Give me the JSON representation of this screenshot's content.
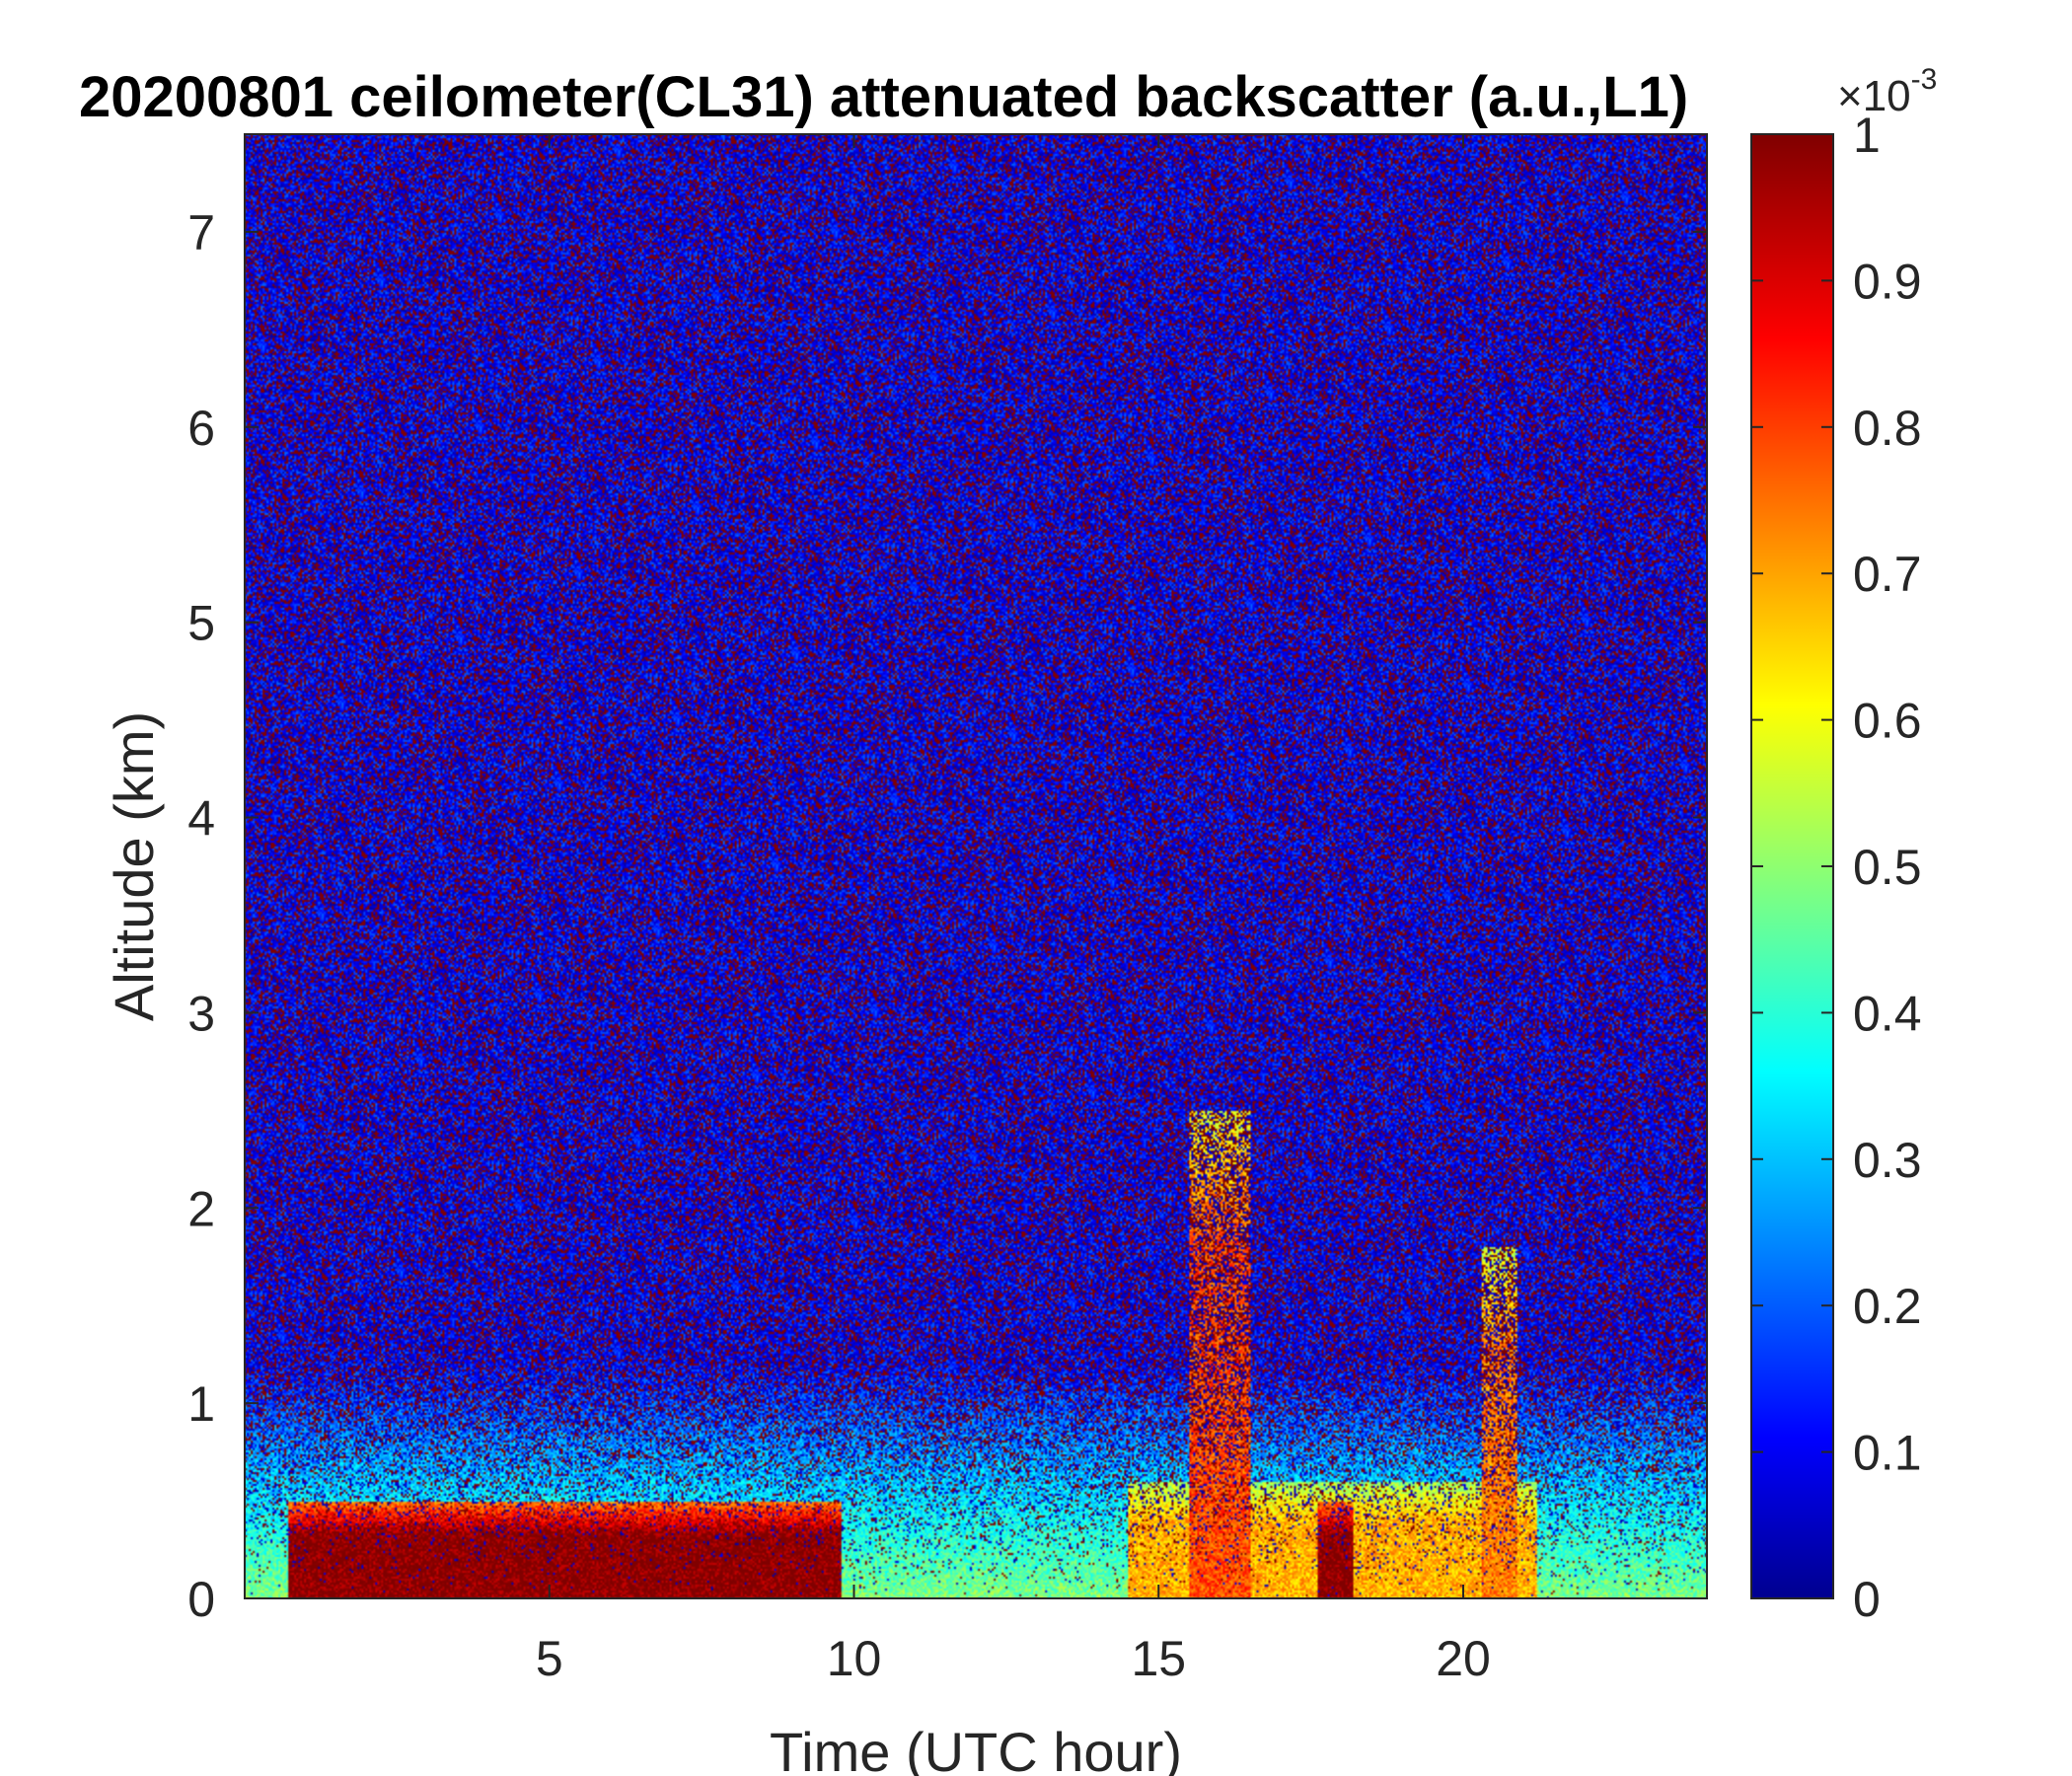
{
  "chart_data": {
    "type": "heatmap",
    "title": "20200801 ceilometer(CL31) attenuated backscatter (a.u.,L1)",
    "xlabel": "Time (UTC hour)",
    "ylabel": "Altitude (km)",
    "xlim": [
      0,
      24
    ],
    "ylim": [
      0,
      7.5
    ],
    "x_ticks": [
      5,
      10,
      15,
      20
    ],
    "y_ticks": [
      0,
      1,
      2,
      3,
      4,
      5,
      6,
      7
    ],
    "colorbar": {
      "colormap": "jet",
      "clim": [
        0,
        1
      ],
      "ticks": [
        0,
        0.1,
        0.2,
        0.3,
        0.4,
        0.5,
        0.6,
        0.7,
        0.8,
        0.9,
        1
      ],
      "exponent_base": "×10",
      "exponent_power": "-3",
      "placement": "right"
    },
    "features": [
      {
        "time_start": 0.7,
        "time_end": 9.8,
        "altitude_top_km": 0.5,
        "value": 1.0
      },
      {
        "time_start": 14.5,
        "time_end": 21.2,
        "altitude_top_km": 0.6,
        "value": 0.7
      },
      {
        "time_start": 17.6,
        "time_end": 18.2,
        "altitude_top_km": 0.5,
        "value": 1.0
      },
      {
        "time_start": 15.5,
        "time_end": 16.5,
        "altitude_top_km": 2.5,
        "value": 0.8
      },
      {
        "time_start": 20.3,
        "time_end": 20.9,
        "altitude_top_km": 1.8,
        "value": 0.75
      }
    ],
    "grid": false
  }
}
